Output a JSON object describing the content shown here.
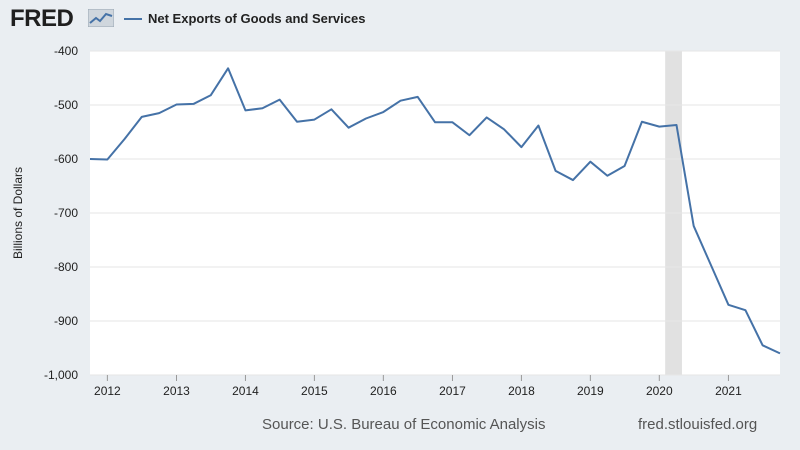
{
  "header": {
    "logo_text": "FRED",
    "logo_icon": "chart-line-icon",
    "legend_label": "Net Exports of Goods and Services",
    "series_color": "#4572a7"
  },
  "footer": {
    "source": "Source: U.S. Bureau of Economic Analysis",
    "url": "fred.stlouisfed.org"
  },
  "chart_data": {
    "type": "line",
    "ylabel": "Billions of Dollars",
    "ylim": [
      -1000,
      -400
    ],
    "yticks": [
      -400,
      -500,
      -600,
      -700,
      -800,
      -900,
      -1000
    ],
    "ytick_labels": [
      "-400",
      "-500",
      "-600",
      "-700",
      "-800",
      "-900",
      "-1,000"
    ],
    "xlim": [
      "2011-10-01",
      "2021-10-01"
    ],
    "xticks": [
      "2012",
      "2013",
      "2014",
      "2015",
      "2016",
      "2017",
      "2018",
      "2019",
      "2020",
      "2021"
    ],
    "grid": "horizontal",
    "recession_shading": [
      {
        "start": "2020-02-01",
        "end": "2020-04-30",
        "color": "#e1e1e1"
      }
    ],
    "series": [
      {
        "name": "Net Exports of Goods and Services",
        "color": "#4572a7",
        "x": [
          "2011-10-01",
          "2012-01-01",
          "2012-04-01",
          "2012-07-01",
          "2012-10-01",
          "2013-01-01",
          "2013-04-01",
          "2013-07-01",
          "2013-10-01",
          "2014-01-01",
          "2014-04-01",
          "2014-07-01",
          "2014-10-01",
          "2015-01-01",
          "2015-04-01",
          "2015-07-01",
          "2015-10-01",
          "2016-01-01",
          "2016-04-01",
          "2016-07-01",
          "2016-10-01",
          "2017-01-01",
          "2017-04-01",
          "2017-07-01",
          "2017-10-01",
          "2018-01-01",
          "2018-04-01",
          "2018-07-01",
          "2018-10-01",
          "2019-01-01",
          "2019-04-01",
          "2019-07-01",
          "2019-10-01",
          "2020-01-01",
          "2020-04-01",
          "2020-07-01",
          "2020-10-01",
          "2021-01-01",
          "2021-04-01",
          "2021-07-01",
          "2021-10-01"
        ],
        "values": [
          -600,
          -601,
          -563,
          -522,
          -515,
          -499,
          -498,
          -482,
          -432,
          -510,
          -506,
          -490,
          -531,
          -527,
          -508,
          -542,
          -525,
          -513,
          -492,
          -485,
          -532,
          -532,
          -556,
          -523,
          -545,
          -578,
          -538,
          -622,
          -639,
          -605,
          -631,
          -613,
          -531,
          -540,
          -537,
          -724,
          -797,
          -870,
          -880,
          -945,
          -960
        ]
      }
    ]
  }
}
